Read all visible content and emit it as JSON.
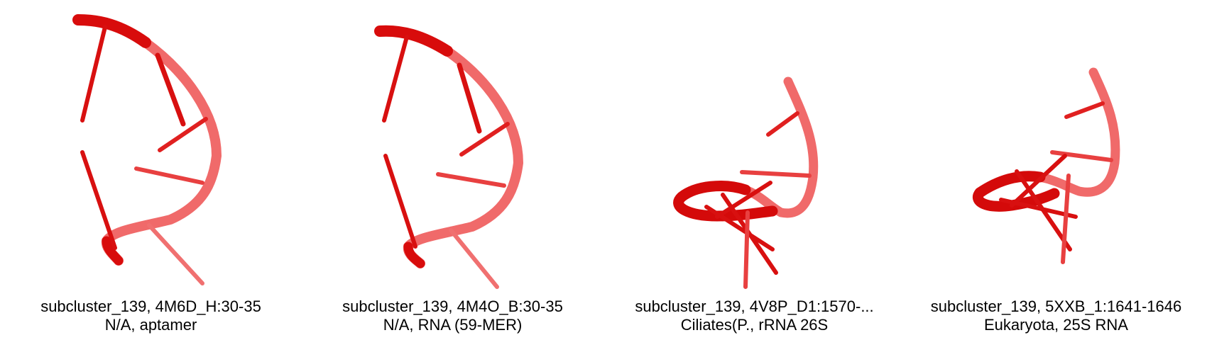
{
  "panels": [
    {
      "title": "subcluster_139, 4M6D_H:30-35",
      "subtitle": "N/A, aptamer"
    },
    {
      "title": "subcluster_139, 4M4O_B:30-35",
      "subtitle": "N/A, RNA (59-MER)"
    },
    {
      "title": "subcluster_139, 4V8P_D1:1570-...",
      "subtitle": "Ciliates(P., rRNA 26S"
    },
    {
      "title": "subcluster_139, 5XXB_1:1641-1646",
      "subtitle": "Eukaryota, 25S RNA"
    }
  ],
  "colors": {
    "strand": "#e01010",
    "strand_light": "#f07070",
    "strand_dark": "#c00000"
  }
}
